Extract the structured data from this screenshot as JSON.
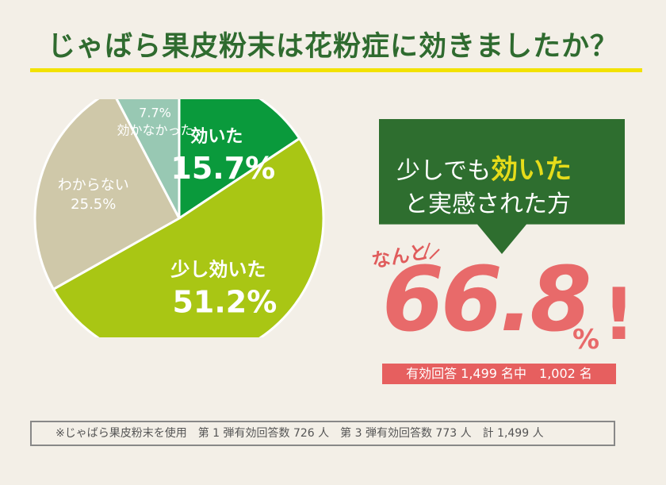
{
  "title": "じゃばら果皮粉末は花粉症に効きましたか？",
  "chart_data": {
    "type": "pie",
    "categories": [
      "効いた",
      "少し効いた",
      "わからない",
      "効かなかった"
    ],
    "values": [
      15.7,
      51.2,
      25.5,
      7.7
    ],
    "value_labels": [
      "15.7%",
      "51.2%",
      "25.5%",
      "7.7%"
    ],
    "colors": [
      "#0a9a3c",
      "#a9c614",
      "#cfc8a9",
      "#98c8b3"
    ]
  },
  "callout": {
    "line1_prefix": "少しでも",
    "line1_highlight": "効いた",
    "line2": "と実感された方",
    "emphasis": "なんと",
    "value": "66.8",
    "unit": "%",
    "exclamation": "!",
    "respondents": "有効回答 1,499 名中　1,002 名"
  },
  "footnote": "※じゃばら果皮粉末を使用　第 1 弾有効回答数 726 人　第 3 弾有効回答数 773 人　計 1,499 人"
}
